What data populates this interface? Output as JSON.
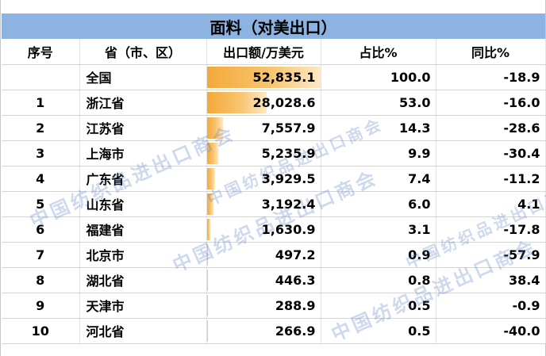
{
  "title": "面料（对美出口）",
  "headers": [
    "序号",
    "省（市、区）",
    "出口额/万美元",
    "占比%",
    "同比%"
  ],
  "rows": [
    {
      "rank": "",
      "province": "全国",
      "amount": "52,835.1",
      "amount_value": 52835.1,
      "share": "100.0",
      "yoy": "-18.9"
    },
    {
      "rank": "1",
      "province": "浙江省",
      "amount": "28,028.6",
      "amount_value": 28028.6,
      "share": "53.0",
      "yoy": "-16.0"
    },
    {
      "rank": "2",
      "province": "江苏省",
      "amount": "7,557.9",
      "amount_value": 7557.9,
      "share": "14.3",
      "yoy": "-28.6"
    },
    {
      "rank": "3",
      "province": "上海市",
      "amount": "5,235.9",
      "amount_value": 5235.9,
      "share": "9.9",
      "yoy": "-30.4"
    },
    {
      "rank": "4",
      "province": "广东省",
      "amount": "3,929.5",
      "amount_value": 3929.5,
      "share": "7.4",
      "yoy": "-11.2"
    },
    {
      "rank": "5",
      "province": "山东省",
      "amount": "3,192.4",
      "amount_value": 3192.4,
      "share": "6.0",
      "yoy": "4.1"
    },
    {
      "rank": "6",
      "province": "福建省",
      "amount": "1,630.9",
      "amount_value": 1630.9,
      "share": "3.1",
      "yoy": "-17.8"
    },
    {
      "rank": "7",
      "province": "北京市",
      "amount": "497.2",
      "amount_value": 497.2,
      "share": "0.9",
      "yoy": "-57.9"
    },
    {
      "rank": "8",
      "province": "湖北省",
      "amount": "446.3",
      "amount_value": 446.3,
      "share": "0.8",
      "yoy": "38.4"
    },
    {
      "rank": "9",
      "province": "天津市",
      "amount": "288.9",
      "amount_value": 288.9,
      "share": "0.5",
      "yoy": "-0.9"
    },
    {
      "rank": "10",
      "province": "河北省",
      "amount": "266.9",
      "amount_value": 266.9,
      "share": "0.5",
      "yoy": "-40.0"
    }
  ],
  "watermark_text": "中国纺织品进出口商会",
  "colors": {
    "title_bg": "#8db3e2",
    "bar_start": "#f4a93a",
    "bar_end": "#fde9c4",
    "watermark": "#5078be"
  }
}
